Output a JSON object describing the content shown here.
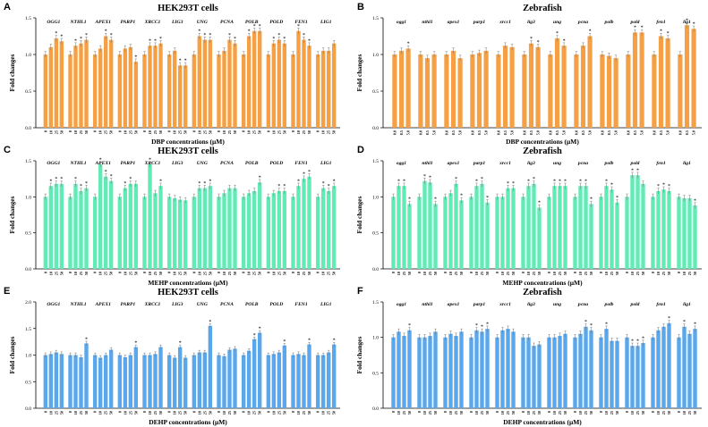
{
  "figure": {
    "panels": [
      {
        "letter": "A",
        "title": "HEK293T cells"
      },
      {
        "letter": "B",
        "title": "Zebrafish"
      },
      {
        "letter": "C",
        "title": "HEK293T cells"
      },
      {
        "letter": "D",
        "title": "Zebrafish"
      },
      {
        "letter": "E",
        "title": "HEK293T cells"
      },
      {
        "letter": "F",
        "title": "Zebrafish"
      }
    ]
  },
  "chart_data": [
    {
      "panel": "A",
      "type": "bar",
      "title": "HEK293T cells",
      "xlabel": "DBP concentrations (μM)",
      "ylabel": "Fold changes",
      "ylim": [
        0,
        1.5
      ],
      "yticks": [
        "0.0",
        "0.5",
        "1.0",
        "1.5"
      ],
      "color": "#F5A045",
      "concentrations": [
        "0",
        "10",
        "25",
        "50"
      ],
      "genes": [
        "OGG1",
        "NTHL1",
        "APEX1",
        "PARP1",
        "XRCC1",
        "LIG3",
        "UNG",
        "PCNA",
        "POLB",
        "POLD",
        "FEN1",
        "LIG1"
      ],
      "values": [
        [
          1.0,
          1.1,
          1.22,
          1.18
        ],
        [
          1.0,
          1.12,
          1.15,
          1.2
        ],
        [
          1.0,
          1.08,
          1.25,
          1.2
        ],
        [
          1.0,
          1.08,
          1.1,
          0.9
        ],
        [
          1.0,
          1.12,
          1.12,
          1.15
        ],
        [
          1.0,
          1.05,
          0.85,
          0.85
        ],
        [
          1.0,
          1.25,
          1.2,
          1.2
        ],
        [
          1.0,
          1.05,
          1.2,
          1.15
        ],
        [
          1.0,
          1.25,
          1.32,
          1.32
        ],
        [
          1.0,
          1.15,
          1.2,
          1.15
        ],
        [
          1.0,
          1.32,
          1.2,
          1.12
        ],
        [
          1.0,
          1.05,
          1.05,
          1.15
        ]
      ],
      "significance": [
        [
          false,
          false,
          true,
          true
        ],
        [
          false,
          true,
          true,
          true
        ],
        [
          false,
          false,
          true,
          true
        ],
        [
          false,
          false,
          false,
          true
        ],
        [
          false,
          true,
          true,
          true
        ],
        [
          false,
          false,
          true,
          true
        ],
        [
          false,
          true,
          true,
          true
        ],
        [
          false,
          false,
          true,
          true
        ],
        [
          false,
          true,
          true,
          true
        ],
        [
          false,
          true,
          true,
          true
        ],
        [
          false,
          true,
          true,
          true
        ],
        [
          false,
          false,
          false,
          false
        ]
      ]
    },
    {
      "panel": "B",
      "type": "bar",
      "title": "Zebrafish",
      "xlabel": "DBP concentrations (μM)",
      "ylabel": "Fold changes",
      "ylim": [
        0,
        1.5
      ],
      "yticks": [
        "0.0",
        "0.5",
        "1.0",
        "1.5"
      ],
      "color": "#F5A045",
      "concentrations": [
        "0.0",
        "0.5",
        "5.0"
      ],
      "genes": [
        "ogg1",
        "nthl1",
        "apex1",
        "parp1",
        "xrcc1",
        "lig3",
        "ung",
        "pcna",
        "polb",
        "pold",
        "fen1",
        "lig1"
      ],
      "values": [
        [
          1.0,
          1.05,
          1.08
        ],
        [
          1.0,
          0.95,
          1.0
        ],
        [
          1.0,
          1.05,
          0.95
        ],
        [
          1.0,
          1.02,
          1.05
        ],
        [
          1.0,
          1.12,
          1.1
        ],
        [
          1.0,
          1.15,
          1.1
        ],
        [
          1.0,
          1.22,
          1.12
        ],
        [
          1.0,
          1.12,
          1.25
        ],
        [
          1.0,
          0.98,
          0.95
        ],
        [
          1.0,
          1.3,
          1.3
        ],
        [
          1.0,
          1.25,
          1.22
        ],
        [
          1.0,
          1.4,
          1.35
        ]
      ],
      "significance": [
        [
          false,
          false,
          true
        ],
        [
          false,
          false,
          false
        ],
        [
          false,
          false,
          false
        ],
        [
          false,
          false,
          false
        ],
        [
          false,
          false,
          false
        ],
        [
          false,
          true,
          true
        ],
        [
          false,
          true,
          true
        ],
        [
          false,
          false,
          true
        ],
        [
          false,
          false,
          false
        ],
        [
          false,
          true,
          true
        ],
        [
          false,
          true,
          true
        ],
        [
          false,
          true,
          true
        ]
      ]
    },
    {
      "panel": "C",
      "type": "bar",
      "title": "HEK293T cells",
      "xlabel": "MEHP concentrations (μM)",
      "ylabel": "Fold changes",
      "ylim": [
        0,
        1.5
      ],
      "yticks": [
        "0.0",
        "0.5",
        "1.0",
        "1.5"
      ],
      "color": "#62EBB5",
      "concentrations": [
        "0",
        "10",
        "25",
        "50"
      ],
      "genes": [
        "OGG1",
        "NTHL1",
        "APEX1",
        "PARP1",
        "XRCC1",
        "LIG3",
        "UNG",
        "PCNA",
        "POLB",
        "POLD",
        "FEN1",
        "LIG1"
      ],
      "values": [
        [
          1.0,
          1.15,
          1.18,
          1.18
        ],
        [
          1.0,
          1.18,
          1.08,
          1.12
        ],
        [
          1.0,
          1.45,
          1.28,
          1.22
        ],
        [
          1.0,
          1.12,
          1.18,
          1.18
        ],
        [
          1.0,
          1.45,
          1.05,
          1.15
        ],
        [
          1.0,
          0.98,
          0.96,
          0.95
        ],
        [
          1.0,
          1.12,
          1.12,
          1.15
        ],
        [
          1.0,
          1.05,
          1.12,
          1.12
        ],
        [
          1.0,
          1.05,
          1.08,
          1.2
        ],
        [
          1.0,
          1.05,
          1.08,
          1.08
        ],
        [
          1.0,
          1.15,
          1.25,
          1.28
        ],
        [
          1.0,
          1.12,
          1.08,
          1.15
        ]
      ],
      "significance": [
        [
          false,
          true,
          true,
          true
        ],
        [
          false,
          true,
          true,
          true
        ],
        [
          false,
          true,
          true,
          true
        ],
        [
          false,
          true,
          true,
          false
        ],
        [
          false,
          true,
          false,
          true
        ],
        [
          false,
          false,
          false,
          false
        ],
        [
          false,
          true,
          true,
          true
        ],
        [
          false,
          false,
          false,
          false
        ],
        [
          false,
          false,
          false,
          true
        ],
        [
          false,
          false,
          true,
          true
        ],
        [
          false,
          true,
          true,
          true
        ],
        [
          false,
          true,
          true,
          true
        ]
      ]
    },
    {
      "panel": "D",
      "type": "bar",
      "title": "Zebrafish",
      "xlabel": "MEHP concentrations (μM)",
      "ylabel": "Fold changes",
      "ylim": [
        0,
        1.5
      ],
      "yticks": [
        "0.0",
        "0.5",
        "1.0",
        "1.5"
      ],
      "color": "#62EBB5",
      "concentrations": [
        "0",
        "10",
        "25",
        "50"
      ],
      "genes": [
        "ogg1",
        "nthl1",
        "apex1",
        "parp1",
        "xrcc1",
        "lig3",
        "ung",
        "pcna",
        "polb",
        "pold",
        "fen1",
        "lig1"
      ],
      "values": [
        [
          1.0,
          1.15,
          1.15,
          0.9
        ],
        [
          1.0,
          1.22,
          1.2,
          0.9
        ],
        [
          1.0,
          1.05,
          1.18,
          0.95
        ],
        [
          1.0,
          1.15,
          1.18,
          0.92
        ],
        [
          1.0,
          1.0,
          1.12,
          1.12
        ],
        [
          1.0,
          1.15,
          1.18,
          0.85
        ],
        [
          1.0,
          1.15,
          1.15,
          1.15
        ],
        [
          1.0,
          1.15,
          1.15,
          0.9
        ],
        [
          1.0,
          1.15,
          1.1,
          0.92
        ],
        [
          1.0,
          1.3,
          1.3,
          1.18
        ],
        [
          1.0,
          1.08,
          1.1,
          1.08
        ],
        [
          1.0,
          0.98,
          0.98,
          0.88
        ]
      ],
      "significance": [
        [
          false,
          true,
          true,
          true
        ],
        [
          false,
          true,
          true,
          true
        ],
        [
          false,
          false,
          true,
          true
        ],
        [
          false,
          true,
          true,
          true
        ],
        [
          false,
          false,
          true,
          true
        ],
        [
          false,
          true,
          true,
          true
        ],
        [
          false,
          true,
          true,
          true
        ],
        [
          false,
          true,
          true,
          true
        ],
        [
          false,
          true,
          true,
          true
        ],
        [
          false,
          true,
          true,
          false
        ],
        [
          false,
          true,
          true,
          true
        ],
        [
          false,
          false,
          false,
          true
        ]
      ]
    },
    {
      "panel": "E",
      "type": "bar",
      "title": "HEK293T cells",
      "xlabel": "DEHP concentrations (μM)",
      "ylabel": "Fold changes",
      "ylim": [
        0,
        2.0
      ],
      "yticks": [
        "0.0",
        "0.5",
        "1.0",
        "1.5",
        "2.0"
      ],
      "color": "#5BA7EC",
      "concentrations": [
        "0",
        "10",
        "25",
        "50"
      ],
      "genes": [
        "OGG1",
        "NTHL1",
        "APEX1",
        "PARP1",
        "XRCC1",
        "LIG3",
        "UNG",
        "PCNA",
        "POLB",
        "POLD",
        "FEN1",
        "LIG1"
      ],
      "values": [
        [
          1.0,
          1.02,
          1.05,
          1.02
        ],
        [
          1.0,
          1.0,
          0.96,
          1.22
        ],
        [
          1.0,
          0.95,
          1.0,
          1.1
        ],
        [
          1.0,
          0.96,
          1.0,
          1.15
        ],
        [
          1.0,
          1.0,
          1.02,
          1.15
        ],
        [
          1.0,
          0.95,
          1.15,
          0.95
        ],
        [
          1.0,
          1.05,
          1.05,
          1.55
        ],
        [
          1.0,
          0.98,
          1.1,
          1.12
        ],
        [
          1.0,
          1.08,
          1.3,
          1.42
        ],
        [
          1.0,
          1.02,
          1.05,
          1.18
        ],
        [
          1.0,
          1.02,
          1.0,
          1.2
        ],
        [
          1.0,
          1.0,
          1.05,
          1.2
        ]
      ],
      "significance": [
        [
          false,
          false,
          false,
          false
        ],
        [
          false,
          false,
          false,
          true
        ],
        [
          false,
          false,
          false,
          false
        ],
        [
          false,
          false,
          false,
          true
        ],
        [
          false,
          false,
          false,
          false
        ],
        [
          false,
          false,
          true,
          false
        ],
        [
          false,
          false,
          false,
          true
        ],
        [
          false,
          false,
          false,
          false
        ],
        [
          false,
          false,
          true,
          true
        ],
        [
          false,
          false,
          false,
          true
        ],
        [
          false,
          false,
          false,
          true
        ],
        [
          false,
          false,
          false,
          true
        ]
      ]
    },
    {
      "panel": "F",
      "type": "bar",
      "title": "Zebrafish",
      "xlabel": "DEHP concentrations (μM)",
      "ylabel": "Fold changes",
      "ylim": [
        0,
        1.5
      ],
      "yticks": [
        "0.0",
        "0.5",
        "1.0",
        "1.5"
      ],
      "color": "#5BA7EC",
      "concentrations": [
        "0",
        "10",
        "25",
        "50"
      ],
      "genes": [
        "ogg1",
        "nthl1",
        "apex1",
        "parp1",
        "xrcc1",
        "lig3",
        "ung",
        "pcna",
        "polb",
        "pold",
        "fen1",
        "lig1"
      ],
      "values": [
        [
          1.0,
          1.08,
          1.02,
          1.1
        ],
        [
          1.0,
          1.0,
          1.02,
          1.08
        ],
        [
          1.0,
          1.05,
          1.02,
          1.08
        ],
        [
          1.0,
          1.1,
          1.08,
          1.12
        ],
        [
          1.0,
          1.1,
          1.12,
          1.08
        ],
        [
          1.0,
          1.0,
          0.88,
          0.9
        ],
        [
          1.0,
          1.0,
          1.02,
          1.05
        ],
        [
          1.0,
          1.05,
          1.15,
          1.1
        ],
        [
          1.0,
          1.12,
          0.95,
          0.95
        ],
        [
          1.0,
          0.88,
          0.88,
          0.92
        ],
        [
          1.0,
          1.1,
          1.15,
          1.2
        ],
        [
          1.0,
          1.15,
          1.05,
          1.12
        ]
      ],
      "significance": [
        [
          false,
          false,
          false,
          true
        ],
        [
          false,
          false,
          false,
          false
        ],
        [
          false,
          false,
          false,
          false
        ],
        [
          false,
          true,
          true,
          true
        ],
        [
          false,
          false,
          false,
          false
        ],
        [
          false,
          false,
          false,
          false
        ],
        [
          false,
          false,
          false,
          false
        ],
        [
          false,
          false,
          true,
          true
        ],
        [
          false,
          true,
          false,
          false
        ],
        [
          false,
          true,
          true,
          true
        ],
        [
          false,
          false,
          false,
          true
        ],
        [
          false,
          true,
          false,
          true
        ]
      ]
    }
  ]
}
